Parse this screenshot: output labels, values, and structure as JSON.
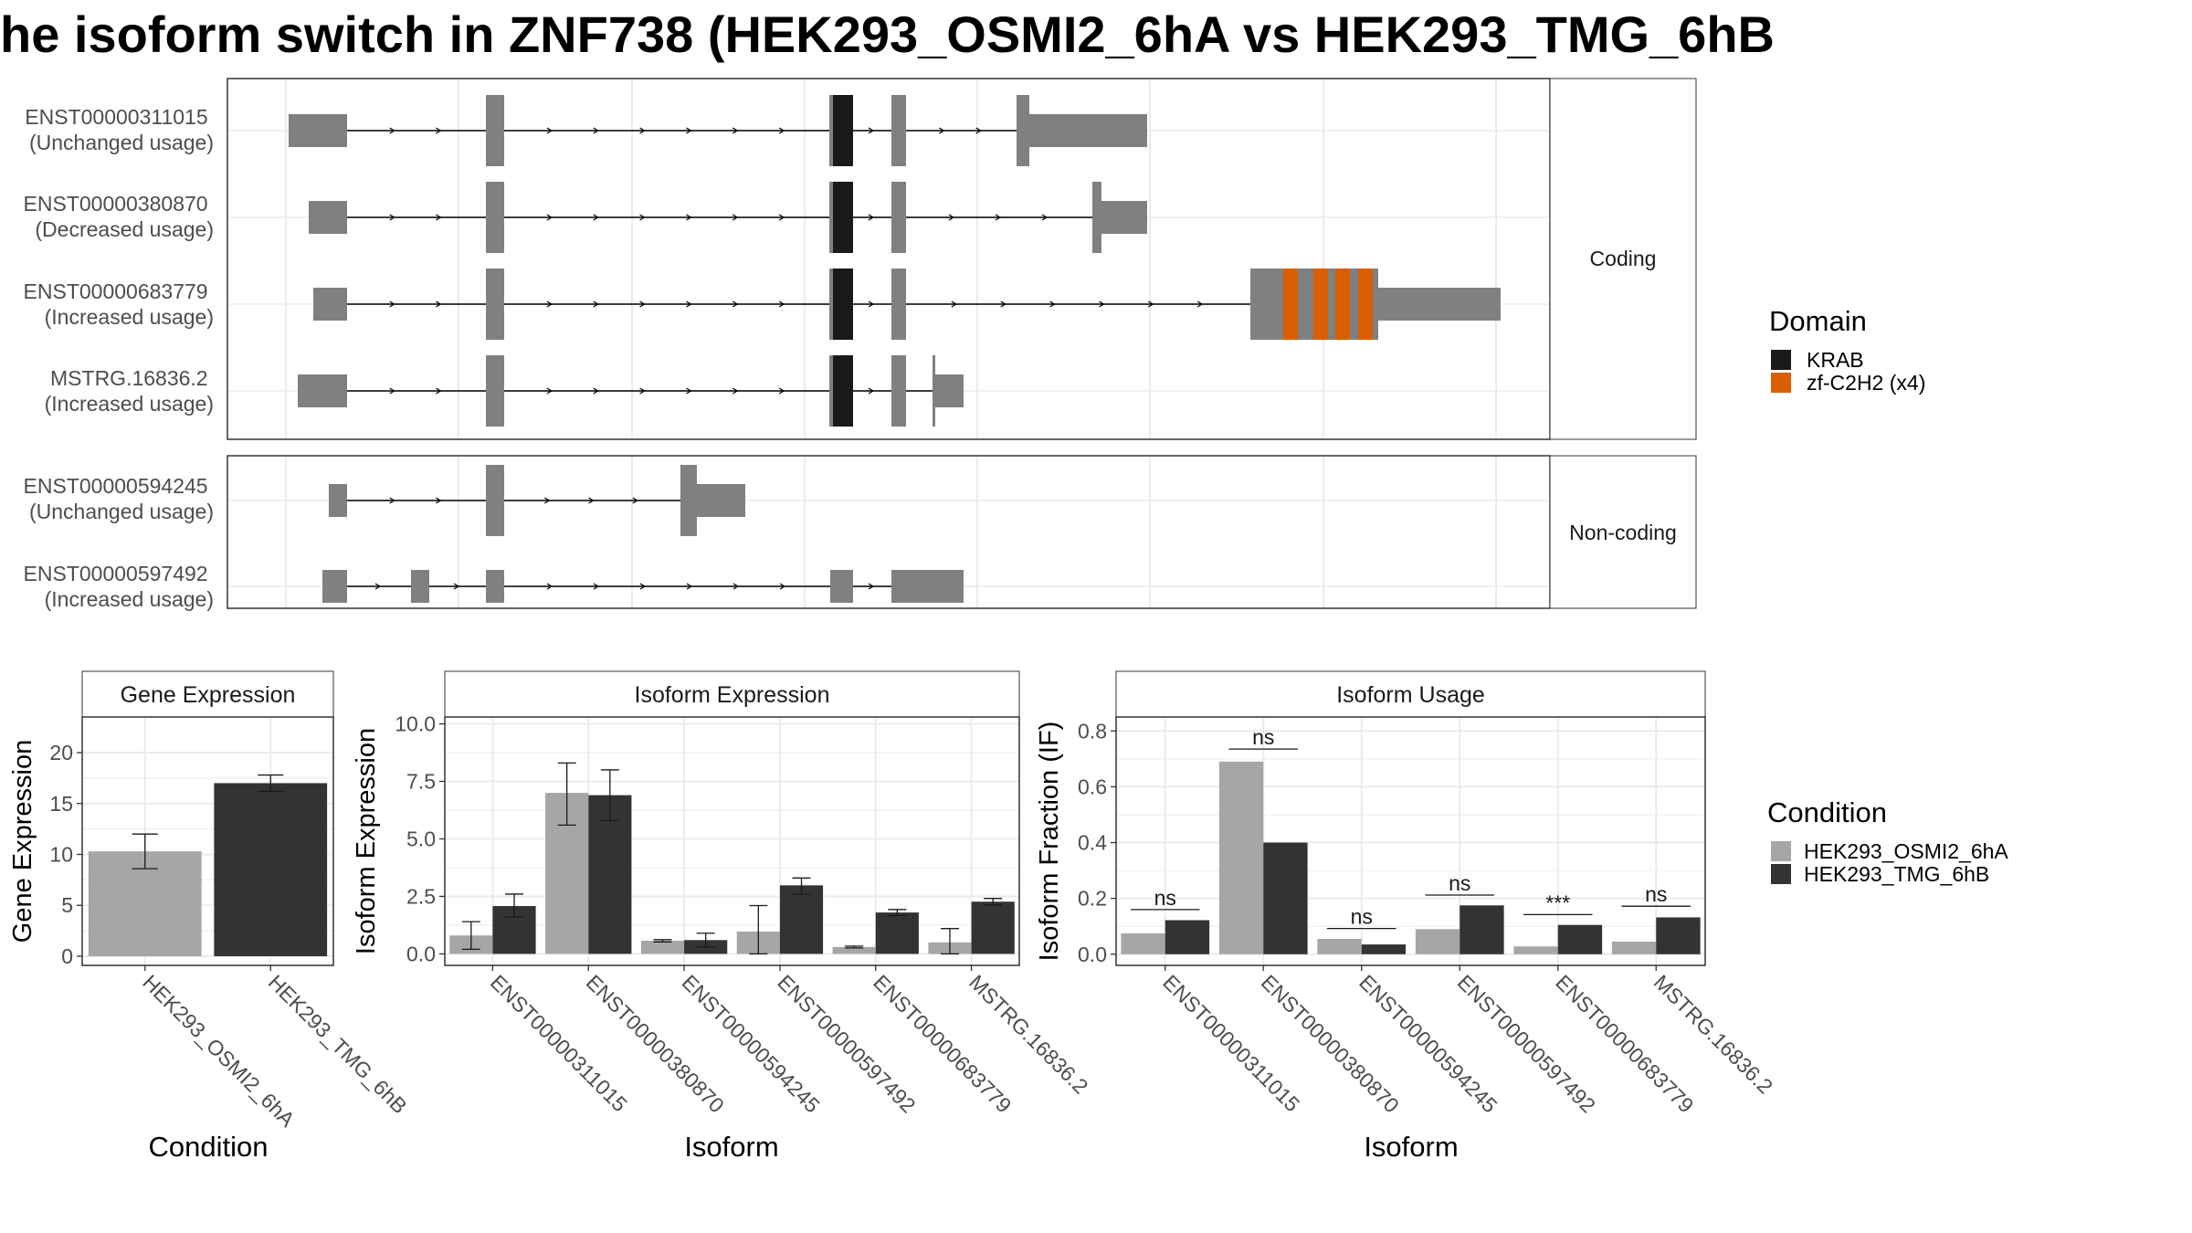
{
  "title": "he isoform switch in ZNF738 (HEK293_OSMI2_6hA vs HEK293_TMG_6hB",
  "colors": {
    "exon": "#808080",
    "krab": "#1a1a1a",
    "zf": "#d95f02",
    "cond_a": "#a6a6a6",
    "cond_b": "#333333",
    "strip_bg": "#ffffff",
    "panel_border": "#333333",
    "grid": "#ebebeb"
  },
  "structure": {
    "coding_label": "Coding",
    "noncoding_label": "Non-coding",
    "coding": [
      {
        "id": "ENST00000311015",
        "usage": "(Unchanged usage)"
      },
      {
        "id": "ENST00000380870",
        "usage": "(Decreased usage)"
      },
      {
        "id": "ENST00000683779",
        "usage": "(Increased usage)"
      },
      {
        "id": "MSTRG.16836.2",
        "usage": "(Increased usage)"
      }
    ],
    "noncoding": [
      {
        "id": "ENST00000594245",
        "usage": "(Unchanged usage)"
      },
      {
        "id": "ENST00000597492",
        "usage": "(Increased usage)"
      }
    ]
  },
  "legend_domain": {
    "title": "Domain",
    "items": [
      {
        "label": "KRAB",
        "color": "#1a1a1a"
      },
      {
        "label": "zf-C2H2 (x4)",
        "color": "#d95f02"
      }
    ]
  },
  "legend_condition": {
    "title": "Condition",
    "items": [
      {
        "label": "HEK293_OSMI2_6hA",
        "color": "#a6a6a6"
      },
      {
        "label": "HEK293_TMG_6hB",
        "color": "#333333"
      }
    ]
  },
  "chart_data": [
    {
      "type": "bar",
      "title": "Gene Expression",
      "xlabel": "Condition",
      "ylabel": "Gene Expression",
      "categories": [
        "HEK293_OSMI2_6hA",
        "HEK293_TMG_6hB"
      ],
      "values": [
        10.3,
        17.0
      ],
      "errors": [
        [
          8.6,
          12.0
        ],
        [
          16.2,
          17.8
        ]
      ],
      "ylim": [
        -0.9,
        23.5
      ],
      "yticks": [
        0,
        5,
        10,
        15,
        20
      ],
      "ytick_labels": [
        "0",
        "5",
        "10",
        "15",
        "20"
      ]
    },
    {
      "type": "bar",
      "title": "Isoform Expression",
      "xlabel": "Isoform",
      "ylabel": "Isoform Expression",
      "categories": [
        "ENST00000311015",
        "ENST00000380870",
        "ENST00000594245",
        "ENST00000597492",
        "ENST00000683779",
        "MSTRG.16836.2"
      ],
      "series": [
        {
          "name": "HEK293_OSMI2_6hA",
          "values": [
            0.8,
            7.0,
            0.57,
            0.97,
            0.3,
            0.5
          ],
          "errors": [
            [
              0.2,
              1.4
            ],
            [
              5.6,
              8.3
            ],
            [
              0.52,
              0.62
            ],
            [
              0.0,
              2.1
            ],
            [
              0.26,
              0.34
            ],
            [
              0.0,
              1.1
            ]
          ]
        },
        {
          "name": "HEK293_TMG_6hB",
          "values": [
            2.08,
            6.9,
            0.6,
            2.98,
            1.8,
            2.27
          ],
          "errors": [
            [
              1.6,
              2.6
            ],
            [
              5.8,
              8.0
            ],
            [
              0.3,
              0.9
            ],
            [
              2.6,
              3.3
            ],
            [
              1.67,
              1.93
            ],
            [
              2.13,
              2.41
            ]
          ]
        }
      ],
      "ylim": [
        -0.5,
        10.3
      ],
      "yticks": [
        0,
        2.5,
        5,
        7.5,
        10
      ],
      "ytick_labels": [
        "0.0",
        "2.5",
        "5.0",
        "7.5",
        "10.0"
      ]
    },
    {
      "type": "bar",
      "title": "Isoform Usage",
      "xlabel": "Isoform",
      "ylabel": "Isoform Fraction (IF)",
      "categories": [
        "ENST00000311015",
        "ENST00000380870",
        "ENST00000594245",
        "ENST00000597492",
        "ENST00000683779",
        "MSTRG.16836.2"
      ],
      "series": [
        {
          "name": "HEK293_OSMI2_6hA",
          "values": [
            0.075,
            0.69,
            0.055,
            0.09,
            0.028,
            0.045
          ]
        },
        {
          "name": "HEK293_TMG_6hB",
          "values": [
            0.122,
            0.4,
            0.035,
            0.175,
            0.105,
            0.132
          ]
        }
      ],
      "significance": [
        "ns",
        "ns",
        "ns",
        "ns",
        "***",
        "ns"
      ],
      "sig_y": [
        0.16,
        0.735,
        0.092,
        0.212,
        0.142,
        0.172
      ],
      "ylim": [
        -0.04,
        0.85
      ],
      "yticks": [
        0,
        0.2,
        0.4,
        0.6,
        0.8
      ],
      "ytick_labels": [
        "0.0",
        "0.2",
        "0.4",
        "0.6",
        "0.8"
      ]
    }
  ]
}
